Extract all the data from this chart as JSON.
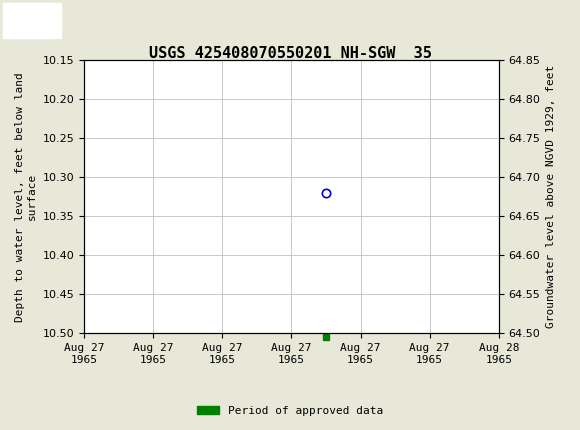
{
  "title": "USGS 425408070550201 NH-SGW  35",
  "xlabel_dates": [
    "Aug 27\n1965",
    "Aug 27\n1965",
    "Aug 27\n1965",
    "Aug 27\n1965",
    "Aug 27\n1965",
    "Aug 27\n1965",
    "Aug 28\n1965"
  ],
  "ylabel_left": "Depth to water level, feet below land\nsurface",
  "ylabel_right": "Groundwater level above NGVD 1929, feet",
  "ylim_left": [
    10.5,
    10.15
  ],
  "ylim_right": [
    64.5,
    64.85
  ],
  "yticks_left": [
    10.15,
    10.2,
    10.25,
    10.3,
    10.35,
    10.4,
    10.45,
    10.5
  ],
  "yticks_right": [
    64.85,
    64.8,
    64.75,
    64.7,
    64.65,
    64.6,
    64.55,
    64.5
  ],
  "data_x_open": 3.5,
  "data_y_open": 10.32,
  "data_x_green": 3.5,
  "data_y_green": 10.505,
  "open_circle_color": "#0000cc",
  "green_square_color": "#008000",
  "background_color": "#e8e8d8",
  "plot_bg_color": "#ffffff",
  "header_color": "#1a7a3c",
  "grid_color": "#c8c8c8",
  "font_family": "monospace",
  "title_fontsize": 11,
  "tick_fontsize": 8,
  "axis_label_fontsize": 8,
  "legend_label": "Period of approved data",
  "x_range": [
    0,
    6
  ]
}
